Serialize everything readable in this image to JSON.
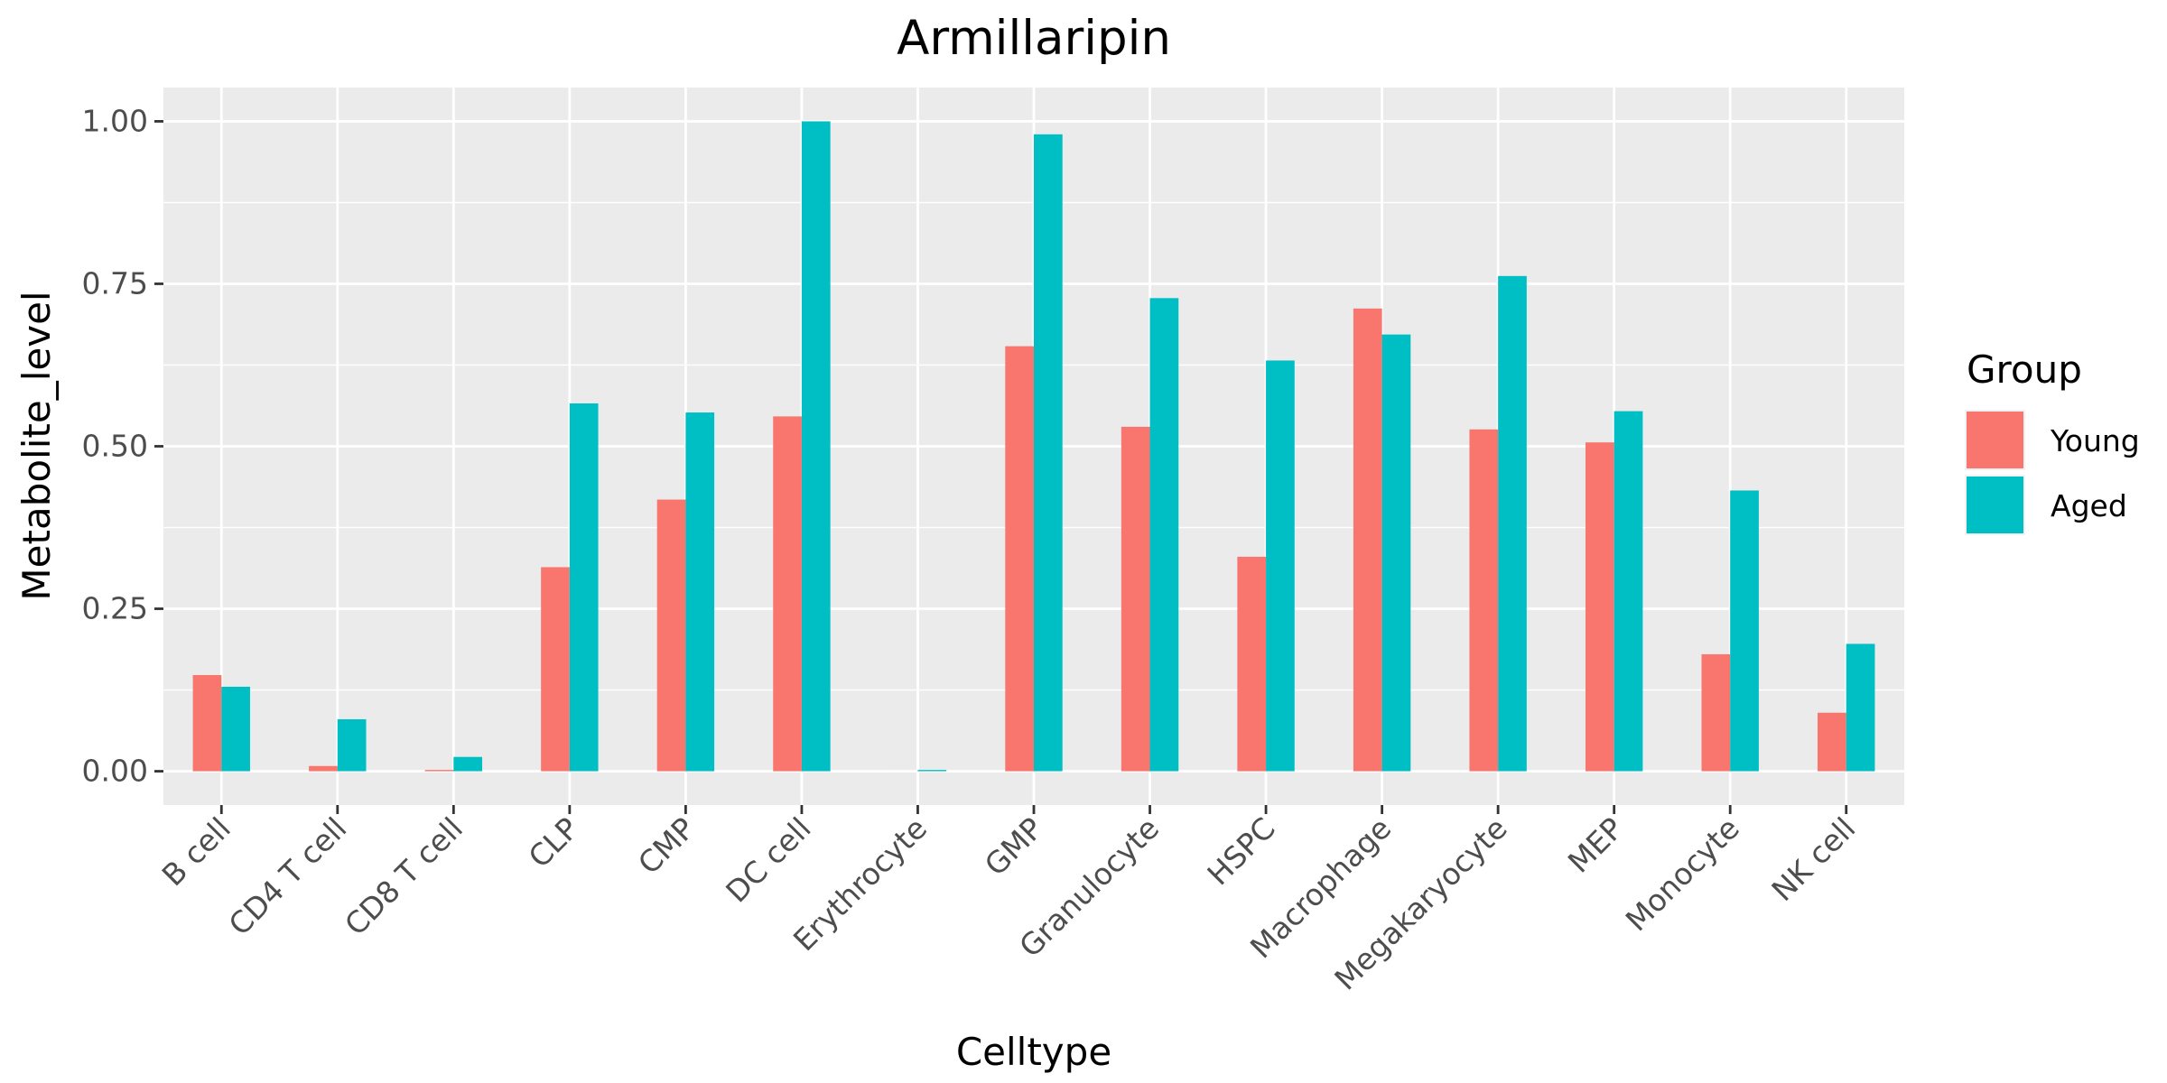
{
  "chart_data": {
    "type": "bar",
    "title": "Armillaripin",
    "xlabel": "Celltype",
    "ylabel": "Metabolite_level",
    "categories": [
      "B cell",
      "CD4 T cell",
      "CD8 T cell",
      "CLP",
      "CMP",
      "DC cell",
      "Erythrocyte",
      "GMP",
      "Granulocyte",
      "HSPC",
      "Macrophage",
      "Megakaryocyte",
      "MEP",
      "Monocyte",
      "NK cell"
    ],
    "series": [
      {
        "name": "Young",
        "color": "#F8766D",
        "values": [
          0.148,
          0.008,
          0.002,
          0.314,
          0.418,
          0.546,
          0.0,
          0.654,
          0.53,
          0.33,
          0.712,
          0.526,
          0.506,
          0.18,
          0.09
        ]
      },
      {
        "name": "Aged",
        "color": "#00BFC4",
        "values": [
          0.13,
          0.08,
          0.022,
          0.566,
          0.552,
          1.0,
          0.002,
          0.98,
          0.728,
          0.632,
          0.672,
          0.762,
          0.554,
          0.432,
          0.196
        ]
      }
    ],
    "ylim": [
      -0.052,
      1.052
    ],
    "yticks": [
      0.0,
      0.25,
      0.5,
      0.75,
      1.0
    ],
    "ytick_labels": [
      "0.00",
      "0.25",
      "0.50",
      "0.75",
      "1.00"
    ],
    "grid": true,
    "legend": {
      "title": "Group",
      "position": "right"
    },
    "background": "#EBEBEB"
  }
}
